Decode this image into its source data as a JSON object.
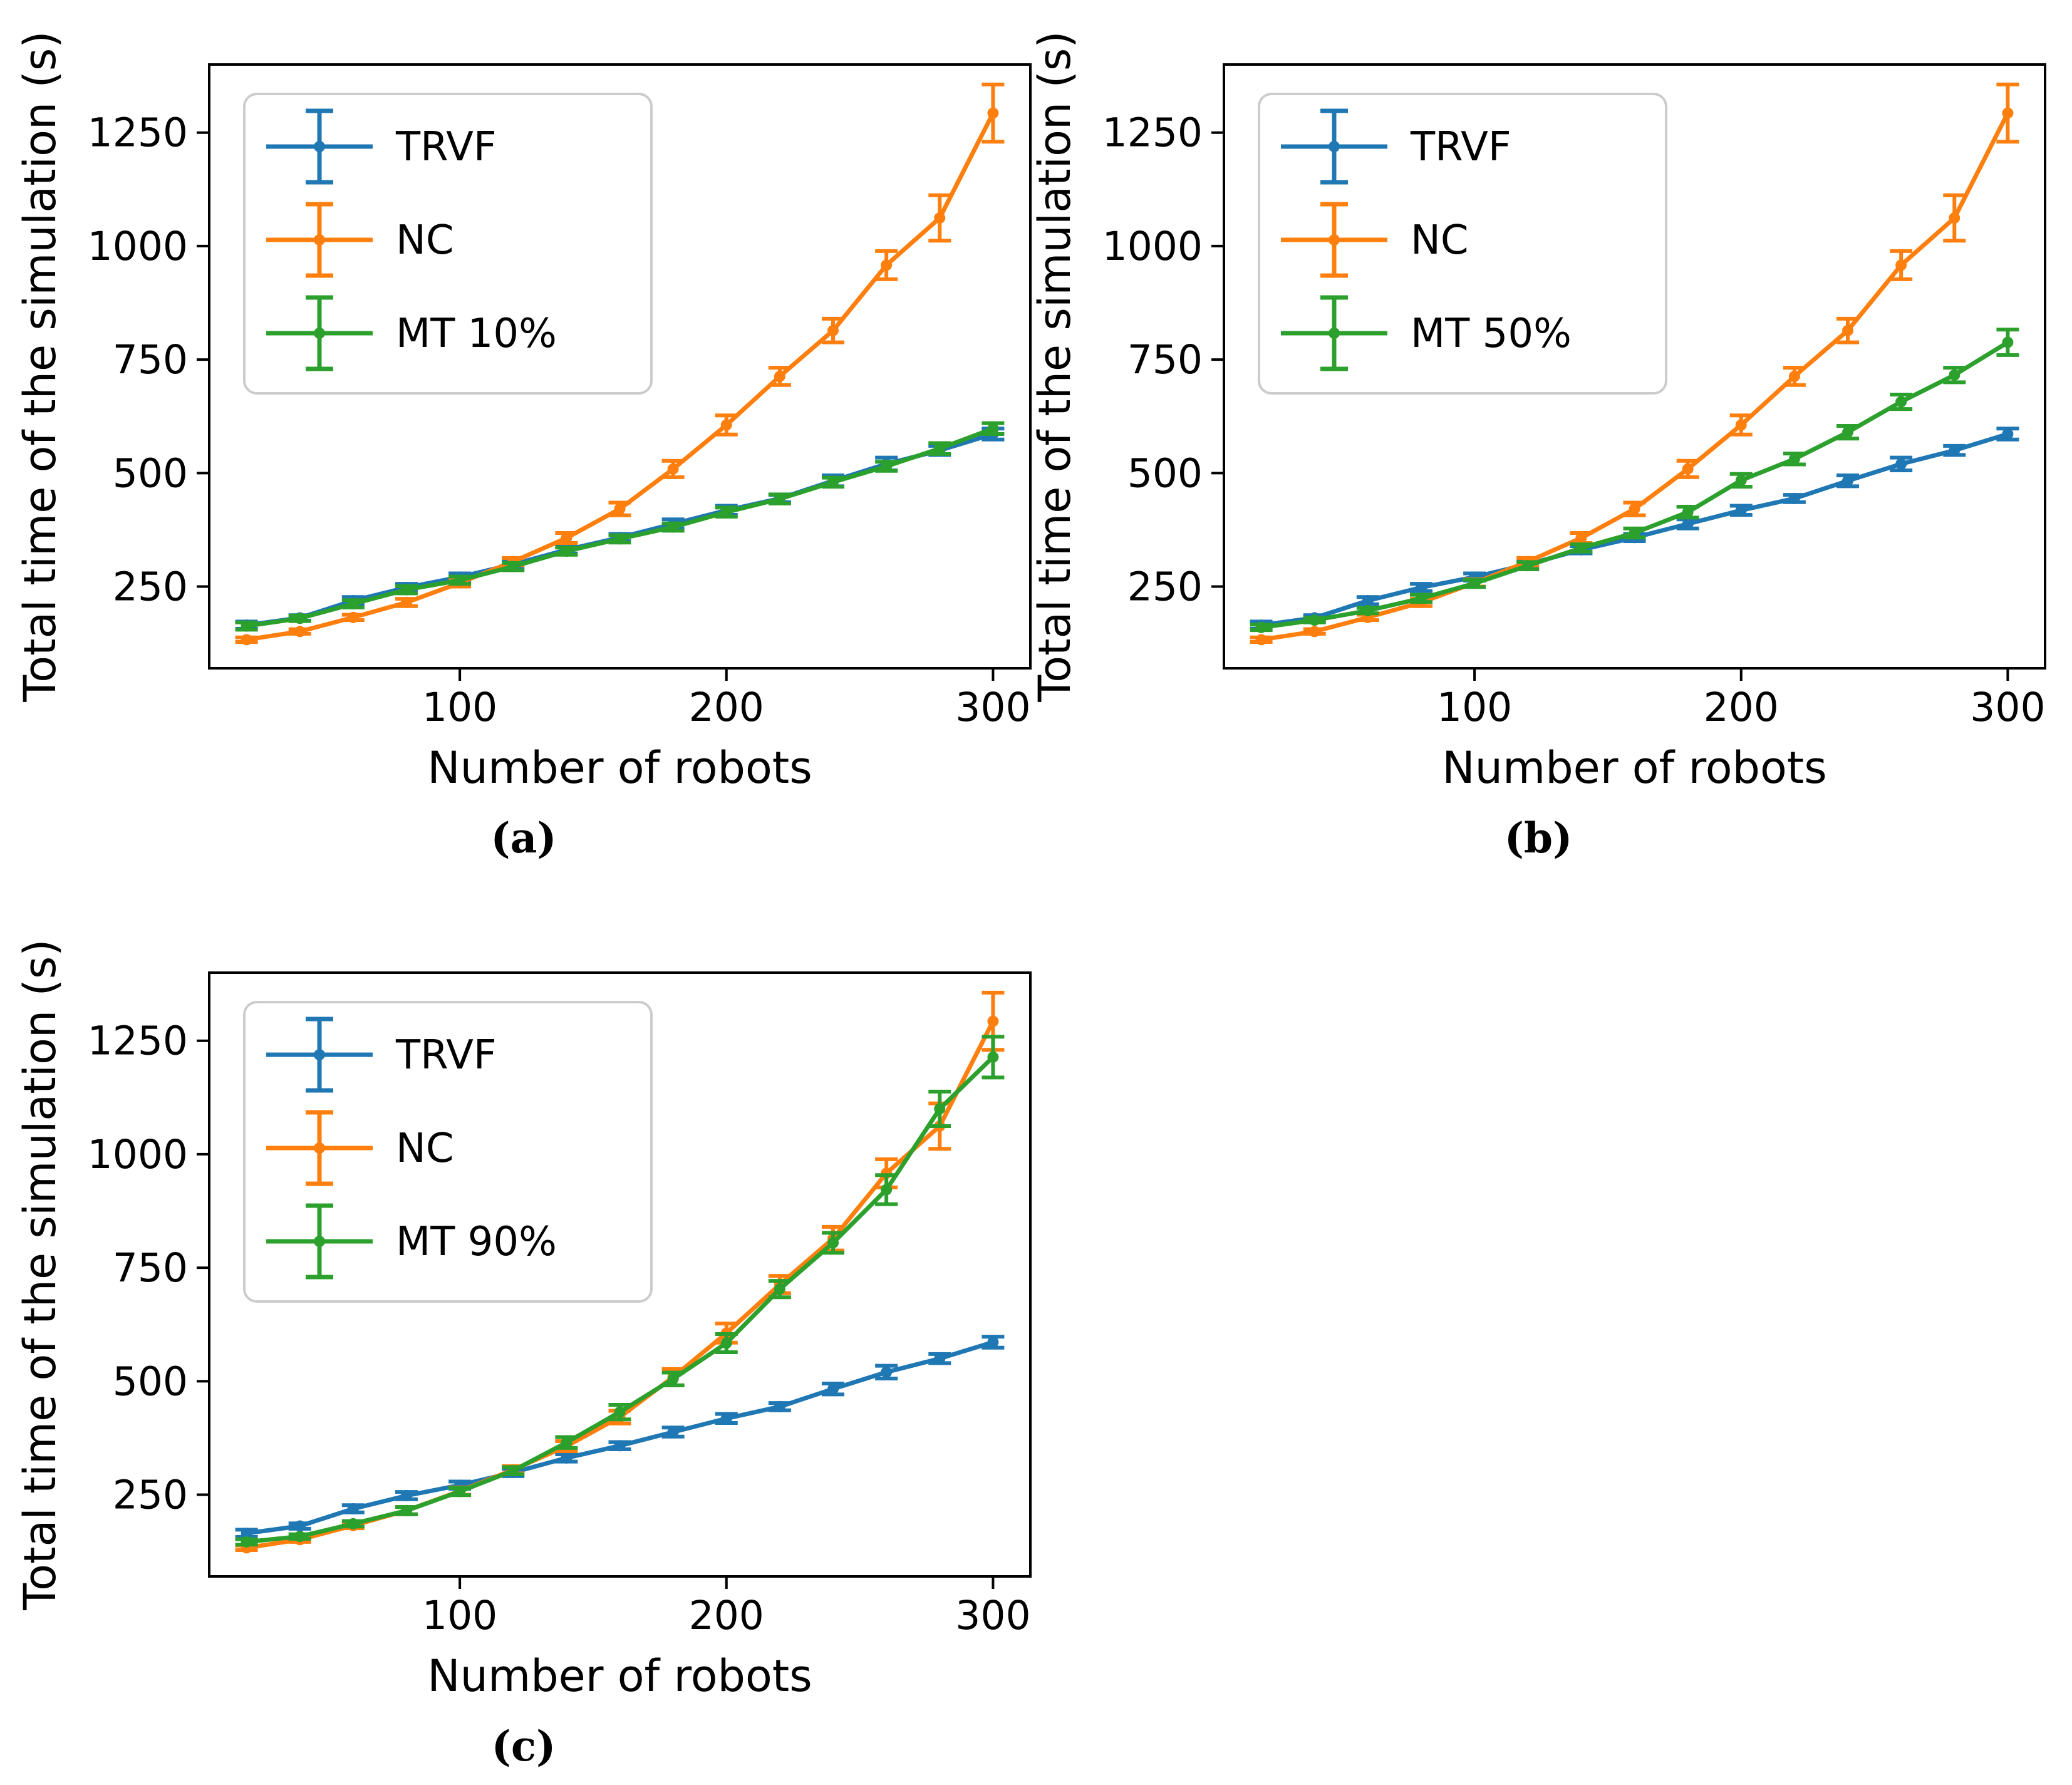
{
  "figure": {
    "xlabel": "Number of robots",
    "ylabel": "Total time of the simulation (s)",
    "captions": [
      "(a)",
      "(b)",
      "(c)"
    ],
    "series_colors": {
      "TRVF": "#1f77b4",
      "NC": "#ff7f0e",
      "MT": "#2ca02c"
    }
  },
  "chart_data": [
    {
      "type": "line",
      "caption": "(a)",
      "xlabel": "Number of robots",
      "ylabel": "Total time of the simulation (s)",
      "x": [
        20,
        40,
        60,
        80,
        100,
        120,
        140,
        160,
        180,
        200,
        220,
        240,
        260,
        280,
        300
      ],
      "xlim": [
        6,
        314
      ],
      "ylim": [
        70,
        1400
      ],
      "xticks": [
        100,
        200,
        300
      ],
      "yticks": [
        250,
        500,
        750,
        1000,
        1250
      ],
      "grid": false,
      "legend_position": "upper left",
      "series": [
        {
          "name": "TRVF",
          "color": "#1f77b4",
          "values": [
            165,
            181,
            219,
            248,
            271,
            299,
            331,
            358,
            388,
            418,
            444,
            483,
            520,
            550,
            586
          ],
          "errors": [
            8,
            6,
            8,
            8,
            8,
            8,
            8,
            8,
            10,
            10,
            8,
            12,
            14,
            10,
            12
          ]
        },
        {
          "name": "NC",
          "color": "#ff7f0e",
          "values": [
            133,
            151,
            182,
            215,
            258,
            305,
            357,
            421,
            509,
            606,
            713,
            814,
            958,
            1062,
            1293
          ],
          "errors": [
            5,
            5,
            6,
            8,
            8,
            8,
            11,
            14,
            18,
            21,
            19,
            26,
            31,
            50,
            63
          ]
        },
        {
          "name": "MT 10%",
          "color": "#2ca02c",
          "values": [
            163,
            180,
            212,
            243,
            264,
            294,
            328,
            355,
            381,
            414,
            443,
            480,
            515,
            554,
            598
          ],
          "errors": [
            8,
            6,
            8,
            8,
            8,
            8,
            8,
            8,
            8,
            10,
            10,
            10,
            10,
            12,
            12
          ]
        }
      ]
    },
    {
      "type": "line",
      "caption": "(b)",
      "xlabel": "Number of robots",
      "ylabel": "Total time of the simulation (s)",
      "x": [
        20,
        40,
        60,
        80,
        100,
        120,
        140,
        160,
        180,
        200,
        220,
        240,
        260,
        280,
        300
      ],
      "xlim": [
        6,
        314
      ],
      "ylim": [
        70,
        1400
      ],
      "xticks": [
        100,
        200,
        300
      ],
      "yticks": [
        250,
        500,
        750,
        1000,
        1250
      ],
      "grid": false,
      "legend_position": "upper left",
      "series": [
        {
          "name": "TRVF",
          "color": "#1f77b4",
          "values": [
            165,
            181,
            219,
            248,
            271,
            299,
            331,
            358,
            388,
            418,
            444,
            483,
            520,
            550,
            586
          ],
          "errors": [
            8,
            6,
            8,
            8,
            8,
            8,
            8,
            8,
            10,
            10,
            8,
            12,
            14,
            10,
            12
          ]
        },
        {
          "name": "NC",
          "color": "#ff7f0e",
          "values": [
            133,
            151,
            182,
            215,
            258,
            305,
            357,
            421,
            509,
            606,
            713,
            814,
            958,
            1062,
            1293
          ],
          "errors": [
            5,
            5,
            6,
            8,
            8,
            8,
            11,
            14,
            18,
            21,
            19,
            26,
            31,
            50,
            63
          ]
        },
        {
          "name": "MT 50%",
          "color": "#2ca02c",
          "values": [
            160,
            176,
            197,
            224,
            257,
            296,
            335,
            368,
            414,
            484,
            531,
            590,
            657,
            716,
            788
          ],
          "errors": [
            6,
            5,
            6,
            8,
            8,
            8,
            8,
            10,
            12,
            14,
            12,
            14,
            16,
            16,
            28
          ]
        }
      ]
    },
    {
      "type": "line",
      "caption": "(c)",
      "xlabel": "Number of robots",
      "ylabel": "Total time of the simulation (s)",
      "x": [
        20,
        40,
        60,
        80,
        100,
        120,
        140,
        160,
        180,
        200,
        220,
        240,
        260,
        280,
        300
      ],
      "xlim": [
        6,
        314
      ],
      "ylim": [
        70,
        1400
      ],
      "xticks": [
        100,
        200,
        300
      ],
      "yticks": [
        250,
        500,
        750,
        1000,
        1250
      ],
      "grid": false,
      "legend_position": "upper left",
      "series": [
        {
          "name": "TRVF",
          "color": "#1f77b4",
          "values": [
            165,
            181,
            219,
            248,
            271,
            299,
            331,
            358,
            388,
            418,
            444,
            483,
            520,
            550,
            586
          ],
          "errors": [
            8,
            6,
            8,
            8,
            8,
            8,
            8,
            8,
            10,
            10,
            8,
            12,
            14,
            10,
            12
          ]
        },
        {
          "name": "NC",
          "color": "#ff7f0e",
          "values": [
            133,
            151,
            182,
            215,
            258,
            305,
            357,
            421,
            509,
            606,
            713,
            814,
            958,
            1062,
            1293
          ],
          "errors": [
            5,
            5,
            6,
            8,
            8,
            8,
            11,
            14,
            18,
            21,
            19,
            26,
            31,
            50,
            63
          ]
        },
        {
          "name": "MT 90%",
          "color": "#2ca02c",
          "values": [
            146,
            158,
            186,
            215,
            257,
            303,
            365,
            432,
            505,
            584,
            703,
            805,
            922,
            1100,
            1214
          ],
          "errors": [
            6,
            5,
            6,
            8,
            8,
            8,
            12,
            16,
            14,
            20,
            18,
            22,
            32,
            38,
            45
          ]
        }
      ]
    }
  ]
}
